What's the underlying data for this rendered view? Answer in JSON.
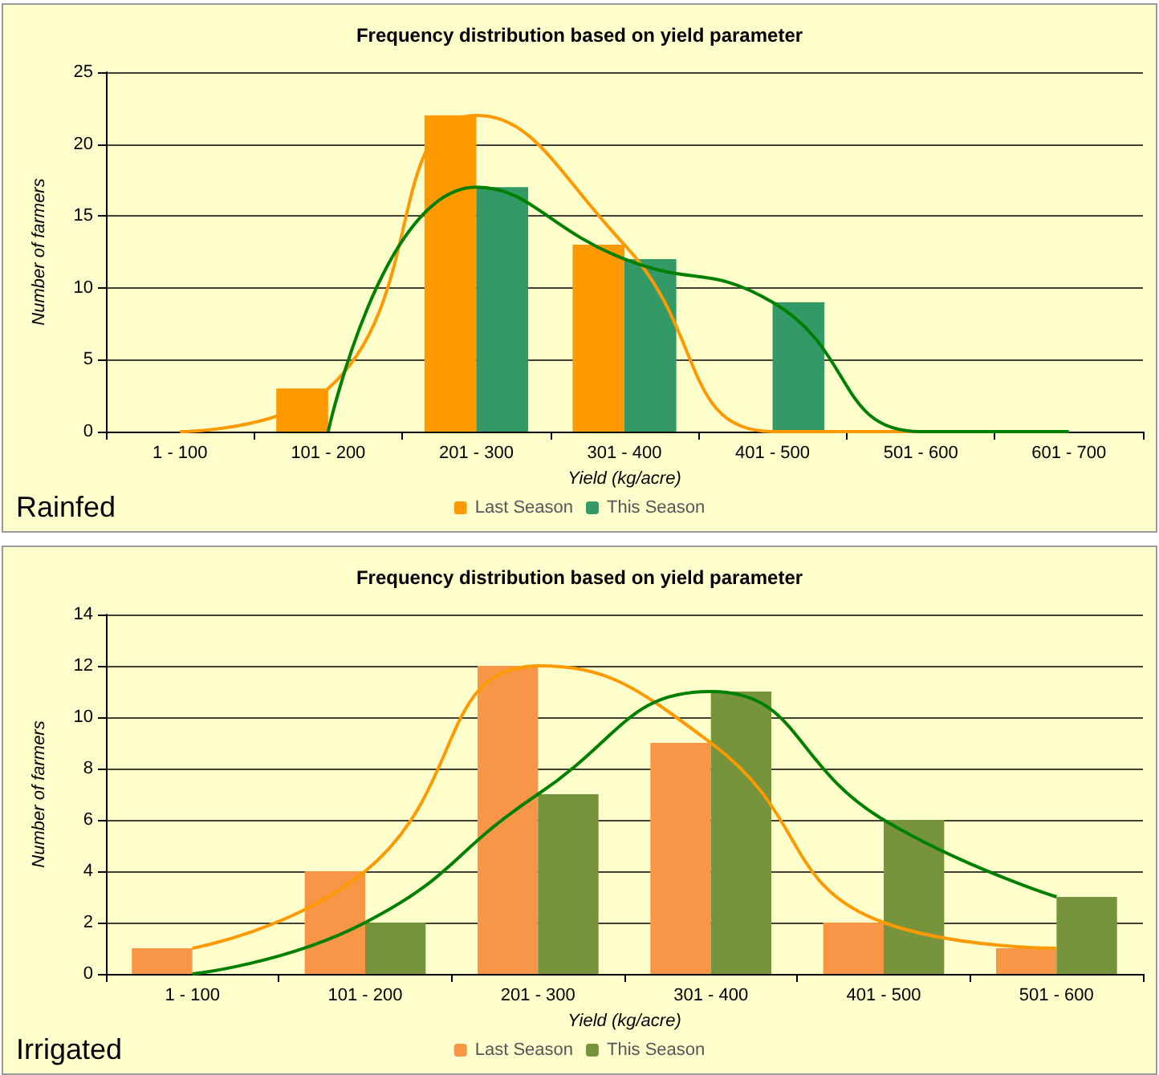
{
  "chart_data": [
    {
      "type": "bar",
      "title": "Frequency distribution based on yield parameter",
      "xlabel": "Yield (kg/acre)",
      "ylabel": "Number of farmers",
      "categories": [
        "1 - 100",
        "101 - 200",
        "201 - 300",
        "301 - 400",
        "401 - 500",
        "501 - 600",
        "601 - 700"
      ],
      "series": [
        {
          "name": "Last Season",
          "color": "#ff9900",
          "values": [
            0,
            3,
            22,
            13,
            0,
            0,
            0
          ]
        },
        {
          "name": "This Season",
          "color": "#339966",
          "values": [
            0,
            0,
            17,
            12,
            9,
            0,
            0
          ]
        },
        {
          "type": "line",
          "color": "#ff9900",
          "values": [
            0,
            3,
            22,
            13,
            0,
            0,
            0
          ]
        },
        {
          "type": "line",
          "color": "#008000",
          "values": [
            null,
            0,
            17,
            12,
            9,
            0,
            0
          ]
        }
      ],
      "ylim": [
        0,
        25
      ],
      "yticks": [
        0,
        5,
        10,
        15,
        20,
        25
      ],
      "grid": "y",
      "legend": "bottom",
      "marker": "none",
      "line_style": "solid",
      "annotations": [
        "Rainfed"
      ]
    },
    {
      "type": "bar",
      "title": "Frequency distribution based on yield parameter",
      "xlabel": "Yield (kg/acre)",
      "ylabel": "Number of farmers",
      "categories": [
        "1 - 100",
        "101 - 200",
        "201 - 300",
        "301 - 400",
        "401 - 500",
        "501 - 600"
      ],
      "series": [
        {
          "name": "Last Season",
          "color": "#f79646",
          "values": [
            1,
            4,
            12,
            9,
            2,
            1
          ]
        },
        {
          "name": "This Season",
          "color": "#77933c",
          "values": [
            0,
            2,
            7,
            11,
            6,
            3
          ]
        },
        {
          "type": "line",
          "color": "#ff9900",
          "values": [
            1,
            4,
            12,
            9,
            2,
            1
          ]
        },
        {
          "type": "line",
          "color": "#008000",
          "values": [
            0,
            2,
            7,
            11,
            6,
            3
          ]
        }
      ],
      "ylim": [
        0,
        14
      ],
      "yticks": [
        0,
        2,
        4,
        6,
        8,
        10,
        12,
        14
      ],
      "grid": "y",
      "legend": "bottom",
      "marker": "none",
      "line_style": "solid",
      "annotations": [
        "Irrigated"
      ]
    }
  ]
}
